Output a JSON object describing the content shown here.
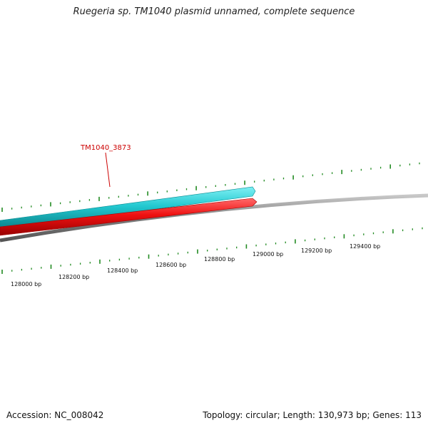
{
  "title": "Ruegeria sp. TM1040 plasmid unnamed, complete sequence",
  "footer": {
    "accession": "Accession: NC_008042",
    "summary": "Topology: circular; Length: 130,973 bp; Genes: 113"
  },
  "feature": {
    "label": "TM1040_3873"
  },
  "ruler": {
    "unit": "bp",
    "labels": [
      "128000 bp",
      "128200 bp",
      "128400 bp",
      "128600 bp",
      "128800 bp",
      "129000 bp",
      "129200 bp",
      "129400 bp"
    ]
  },
  "colors": {
    "forward_gene": "#22c8d0",
    "reverse_gene": "#ee1111",
    "backbone": "#808080",
    "ticks": "#228b22",
    "label_red": "#cc0000"
  }
}
